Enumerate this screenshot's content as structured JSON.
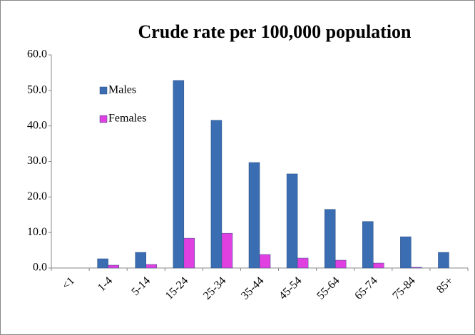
{
  "chart_data": {
    "type": "bar",
    "title": "Crude rate per 100,000 population",
    "categories": [
      "<1",
      "1-4",
      "5-14",
      "15-24",
      "25-34",
      "35-44",
      "45-54",
      "55-64",
      "65-74",
      "75-84",
      "85+"
    ],
    "series": [
      {
        "name": "Males",
        "color": "#3b6db3",
        "values": [
          0,
          2.6,
          4.4,
          52.8,
          41.6,
          29.7,
          26.5,
          16.5,
          13.1,
          8.8,
          4.4
        ]
      },
      {
        "name": "Females",
        "color": "#e040e0",
        "values": [
          0,
          0.8,
          1.0,
          8.4,
          9.8,
          3.8,
          2.8,
          2.2,
          1.4,
          0.2,
          0
        ]
      }
    ],
    "ylim": [
      0,
      60
    ],
    "yticks": [
      {
        "value": 0,
        "label": "0.0"
      },
      {
        "value": 10,
        "label": "10.0"
      },
      {
        "value": 20,
        "label": "20.0"
      },
      {
        "value": 30,
        "label": "30.0"
      },
      {
        "value": 40,
        "label": "40.0"
      },
      {
        "value": 50,
        "label": "50.0"
      },
      {
        "value": 60,
        "label": "60.0"
      }
    ],
    "grid": false,
    "legend": "upper-left"
  }
}
